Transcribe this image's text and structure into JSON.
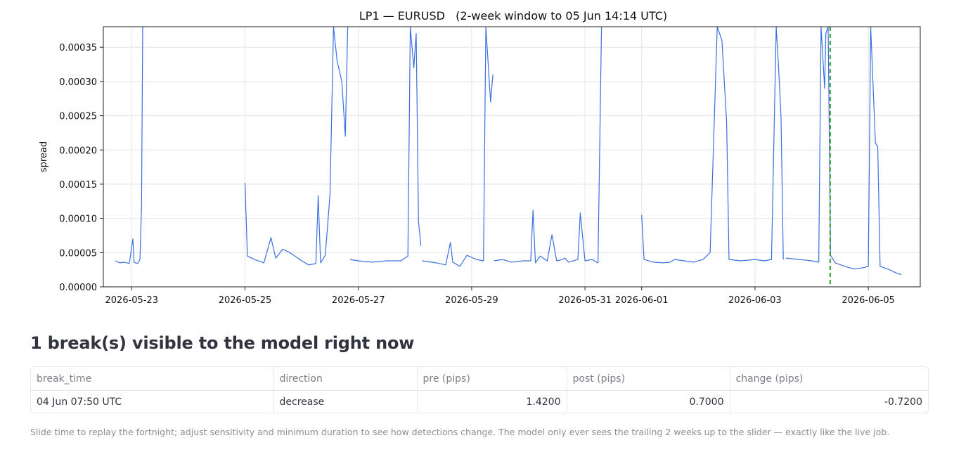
{
  "chart_data": {
    "type": "line",
    "title": "LP1 — EURUSD   (2-week window to 05 Jun 14:14 UTC)",
    "xlabel": "",
    "ylabel": "spread",
    "ylim": [
      0,
      0.00038
    ],
    "xlim": [
      "2026-05-22T12:00",
      "2026-06-05T22:00"
    ],
    "y_ticks": [
      "0.00000",
      "0.00005",
      "0.00010",
      "0.00015",
      "0.00020",
      "0.00025",
      "0.00030",
      "0.00035"
    ],
    "y_tick_values": [
      0,
      5e-05,
      0.0001,
      0.00015,
      0.0002,
      0.00025,
      0.0003,
      0.00035
    ],
    "x_ticks": [
      "2026-05-23",
      "2026-05-25",
      "2026-05-27",
      "2026-05-29",
      "2026-05-31",
      "2026-06-01",
      "2026-06-03",
      "2026-06-05"
    ],
    "x_tick_dates": [
      "2026-05-23T00:00",
      "2026-05-25T00:00",
      "2026-05-27T00:00",
      "2026-05-29T00:00",
      "2026-05-31T00:00",
      "2026-06-01T00:00",
      "2026-06-03T00:00",
      "2026-06-05T00:00"
    ],
    "grid": true,
    "line_color": "#3b6fe0",
    "break_color": "#2ca02c",
    "break_times": [
      "2026-06-04T07:50"
    ],
    "series": [
      {
        "segments": [
          [
            [
              "2026-05-22T17:00",
              3.8e-05
            ],
            [
              "2026-05-22T19:00",
              3.5e-05
            ],
            [
              "2026-05-22T21:00",
              3.6e-05
            ],
            [
              "2026-05-22T23:00",
              3.4e-05
            ],
            [
              "2026-05-23T00:30",
              7e-05
            ],
            [
              "2026-05-23T01:00",
              3.6e-05
            ],
            [
              "2026-05-23T02:30",
              3.4e-05
            ],
            [
              "2026-05-23T03:30",
              4e-05
            ],
            [
              "2026-05-23T04:10",
              0.000118
            ],
            [
              "2026-05-23T04:40",
              0.00038
            ]
          ],
          [
            [
              "2026-05-25T00:00",
              0.000152
            ],
            [
              "2026-05-25T01:00",
              4.5e-05
            ],
            [
              "2026-05-25T04:00",
              4e-05
            ],
            [
              "2026-05-25T08:00",
              3.5e-05
            ],
            [
              "2026-05-25T11:00",
              7.2e-05
            ],
            [
              "2026-05-25T13:00",
              4.2e-05
            ],
            [
              "2026-05-25T16:00",
              5.5e-05
            ],
            [
              "2026-05-25T19:00",
              5e-05
            ],
            [
              "2026-05-26T00:00",
              3.8e-05
            ],
            [
              "2026-05-26T03:00",
              3.2e-05
            ],
            [
              "2026-05-26T06:00",
              3.4e-05
            ],
            [
              "2026-05-26T07:00",
              0.000133
            ],
            [
              "2026-05-26T08:00",
              3.5e-05
            ],
            [
              "2026-05-26T10:00",
              4.6e-05
            ],
            [
              "2026-05-26T12:00",
              0.000135
            ],
            [
              "2026-05-26T13:30",
              0.00038
            ],
            [
              "2026-05-26T15:00",
              0.00033
            ],
            [
              "2026-05-26T17:00",
              0.0003
            ],
            [
              "2026-05-26T18:30",
              0.00022
            ],
            [
              "2026-05-26T19:30",
              0.00038
            ]
          ],
          [
            [
              "2026-05-26T20:30",
              4e-05
            ],
            [
              "2026-05-27T00:00",
              3.8e-05
            ],
            [
              "2026-05-27T06:00",
              3.6e-05
            ],
            [
              "2026-05-27T12:00",
              3.8e-05
            ],
            [
              "2026-05-27T18:00",
              3.8e-05
            ],
            [
              "2026-05-27T21:00",
              4.5e-05
            ],
            [
              "2026-05-27T22:00",
              0.00038
            ],
            [
              "2026-05-27T23:30",
              0.00032
            ],
            [
              "2026-05-28T00:30",
              0.00037
            ],
            [
              "2026-05-28T01:30",
              9.5e-05
            ],
            [
              "2026-05-28T02:30",
              6e-05
            ]
          ],
          [
            [
              "2026-05-28T03:00",
              3.8e-05
            ],
            [
              "2026-05-28T09:00",
              3.5e-05
            ],
            [
              "2026-05-28T13:00",
              3.2e-05
            ],
            [
              "2026-05-28T15:00",
              6.5e-05
            ],
            [
              "2026-05-28T16:00",
              3.6e-05
            ],
            [
              "2026-05-28T19:00",
              3e-05
            ],
            [
              "2026-05-28T22:00",
              4.6e-05
            ],
            [
              "2026-05-29T02:00",
              4e-05
            ],
            [
              "2026-05-29T05:00",
              3.8e-05
            ],
            [
              "2026-05-29T06:00",
              0.00038
            ],
            [
              "2026-05-29T08:00",
              0.00027
            ],
            [
              "2026-05-29T09:00",
              0.00031
            ]
          ],
          [
            [
              "2026-05-29T09:30",
              3.8e-05
            ],
            [
              "2026-05-29T13:00",
              4e-05
            ],
            [
              "2026-05-29T17:00",
              3.6e-05
            ],
            [
              "2026-05-29T22:00",
              3.8e-05
            ],
            [
              "2026-05-30T01:00",
              3.8e-05
            ],
            [
              "2026-05-30T02:00",
              0.000112
            ],
            [
              "2026-05-30T03:00",
              3.5e-05
            ],
            [
              "2026-05-30T05:00",
              4.5e-05
            ],
            [
              "2026-05-30T08:00",
              3.8e-05
            ],
            [
              "2026-05-30T10:00",
              7.6e-05
            ],
            [
              "2026-05-30T12:00",
              3.8e-05
            ],
            [
              "2026-05-30T14:30",
              4e-05
            ],
            [
              "2026-05-30T15:30",
              4.2e-05
            ],
            [
              "2026-05-30T17:00",
              3.6e-05
            ],
            [
              "2026-05-30T21:00",
              4e-05
            ],
            [
              "2026-05-30T22:00",
              0.000108
            ],
            [
              "2026-05-31T00:00",
              3.8e-05
            ],
            [
              "2026-05-31T03:00",
              4e-05
            ],
            [
              "2026-05-31T05:30",
              3.5e-05
            ],
            [
              "2026-05-31T07:00",
              0.00038
            ]
          ],
          [
            [
              "2026-06-01T00:00",
              0.000105
            ],
            [
              "2026-06-01T01:00",
              4e-05
            ],
            [
              "2026-06-01T05:00",
              3.6e-05
            ],
            [
              "2026-06-01T09:00",
              3.5e-05
            ],
            [
              "2026-06-01T12:00",
              3.6e-05
            ],
            [
              "2026-06-01T14:00",
              4e-05
            ],
            [
              "2026-06-01T18:00",
              3.8e-05
            ],
            [
              "2026-06-01T22:00",
              3.6e-05
            ],
            [
              "2026-06-02T02:00",
              4e-05
            ],
            [
              "2026-06-02T05:00",
              5e-05
            ],
            [
              "2026-06-02T08:00",
              0.00038
            ],
            [
              "2026-06-02T10:00",
              0.00036
            ],
            [
              "2026-06-02T12:00",
              0.00024
            ],
            [
              "2026-06-02T13:00",
              4e-05
            ],
            [
              "2026-06-02T18:00",
              3.8e-05
            ],
            [
              "2026-06-03T00:00",
              4e-05
            ],
            [
              "2026-06-03T04:00",
              3.8e-05
            ],
            [
              "2026-06-03T07:00",
              4e-05
            ],
            [
              "2026-06-03T09:00",
              0.00038
            ],
            [
              "2026-06-03T10:00",
              0.00032
            ],
            [
              "2026-06-03T11:00",
              0.00025
            ],
            [
              "2026-06-03T12:00",
              4e-05
            ]
          ],
          [
            [
              "2026-06-03T13:00",
              4.2e-05
            ],
            [
              "2026-06-03T19:00",
              4e-05
            ],
            [
              "2026-06-04T00:00",
              3.8e-05
            ],
            [
              "2026-06-04T03:00",
              3.6e-05
            ],
            [
              "2026-06-04T04:00",
              0.00038
            ],
            [
              "2026-06-04T05:30",
              0.00029
            ],
            [
              "2026-06-04T06:00",
              0.00037
            ],
            [
              "2026-06-04T07:00",
              0.00038
            ],
            [
              "2026-06-04T08:00",
              4.6e-05
            ],
            [
              "2026-06-04T10:00",
              3.5e-05
            ],
            [
              "2026-06-04T14:00",
              3e-05
            ],
            [
              "2026-06-04T18:00",
              2.6e-05
            ],
            [
              "2026-06-04T22:00",
              2.8e-05
            ],
            [
              "2026-06-05T00:00",
              3e-05
            ],
            [
              "2026-06-05T01:00",
              0.00038
            ],
            [
              "2026-06-05T03:00",
              0.00021
            ],
            [
              "2026-06-05T04:00",
              0.000205
            ],
            [
              "2026-06-05T05:00",
              3e-05
            ],
            [
              "2026-06-05T09:00",
              2.5e-05
            ],
            [
              "2026-06-05T12:00",
              2e-05
            ],
            [
              "2026-06-05T14:00",
              1.8e-05
            ]
          ]
        ]
      }
    ]
  },
  "section_title": "1 break(s) visible to the model right now",
  "table": {
    "columns": [
      "break_time",
      "direction",
      "pre (pips)",
      "post (pips)",
      "change (pips)"
    ],
    "rows": [
      [
        "04 Jun 07:50 UTC",
        "decrease",
        "1.4200",
        "0.7000",
        "-0.7200"
      ]
    ]
  },
  "caption": "Slide time to replay the fortnight; adjust sensitivity and minimum duration to see how detections change. The model only ever sees the trailing 2 weeks up to the slider — exactly like the live job."
}
